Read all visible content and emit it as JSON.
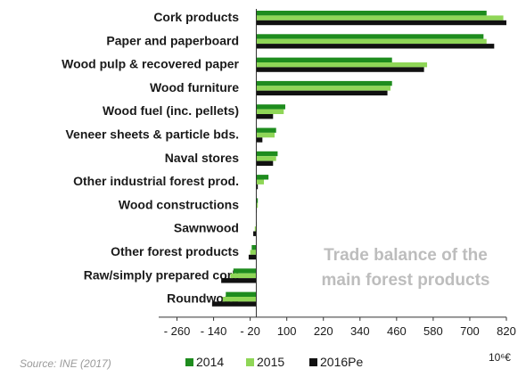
{
  "chart_data": {
    "type": "bar",
    "orientation": "horizontal",
    "categories": [
      "Cork products",
      "Paper and paperboard",
      "Wood pulp & recovered paper",
      "Wood furniture",
      "Wood fuel (inc. pellets)",
      "Veneer sheets & particle bds.",
      "Naval stores",
      "Other industrial forest prod.",
      "Wood constructions",
      "Sawnwood",
      "Other forest products",
      "Raw/simply prepared cork",
      "Roundwood"
    ],
    "series": [
      {
        "name": "2014",
        "color": "#1e8c1e",
        "values": [
          755,
          745,
          445,
          445,
          95,
          65,
          70,
          40,
          5,
          0,
          -15,
          -75,
          -100
        ]
      },
      {
        "name": "2015",
        "color": "#8fd657",
        "values": [
          810,
          755,
          560,
          440,
          90,
          60,
          65,
          25,
          5,
          -5,
          -20,
          -85,
          -110
        ]
      },
      {
        "name": "2016Pe",
        "color": "#111111",
        "values": [
          820,
          780,
          550,
          430,
          55,
          20,
          55,
          5,
          0,
          -10,
          -25,
          -115,
          -145
        ]
      }
    ],
    "x_ticks": [
      "- 260",
      "- 140",
      "- 20",
      "100",
      "220",
      "340",
      "460",
      "580",
      "700",
      "820"
    ],
    "xlim": [
      -320,
      820
    ],
    "unit_label": "10⁶€",
    "legend_position": "bottom",
    "annotation": [
      "Trade balance of the",
      "main forest products"
    ],
    "source": "Source: INE (2017)",
    "grid": false
  }
}
